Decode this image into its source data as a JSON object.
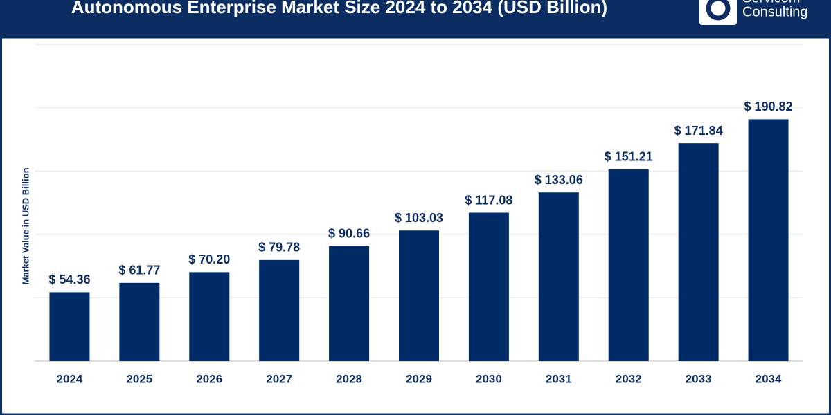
{
  "chart_data": {
    "type": "bar",
    "title": "Autonomous Enterprise Market Size 2024 to 2034 (USD Billion)",
    "brand_lines": [
      "Servicom",
      "Consulting"
    ],
    "y_label": "Market Value in USD Billion",
    "categories": [
      "2024",
      "2025",
      "2026",
      "2027",
      "2028",
      "2029",
      "2030",
      "2031",
      "2032",
      "2033",
      "2034"
    ],
    "values": [
      54.36,
      61.77,
      70.2,
      79.78,
      90.66,
      103.03,
      117.08,
      133.06,
      151.21,
      171.84,
      190.82
    ],
    "value_labels": [
      "$ 54.36",
      "$ 61.77",
      "$ 70.20",
      "$ 79.78",
      "$ 90.66",
      "$ 103.03",
      "$ 117.08",
      "$ 133.06",
      "$ 151.21",
      "$ 171.84",
      "$ 190.82"
    ],
    "color": "#002b66",
    "ylim": [
      0,
      250
    ],
    "yticks": [
      0,
      50,
      100,
      150,
      200,
      250
    ],
    "grid": true,
    "show_ytick_labels": false
  }
}
